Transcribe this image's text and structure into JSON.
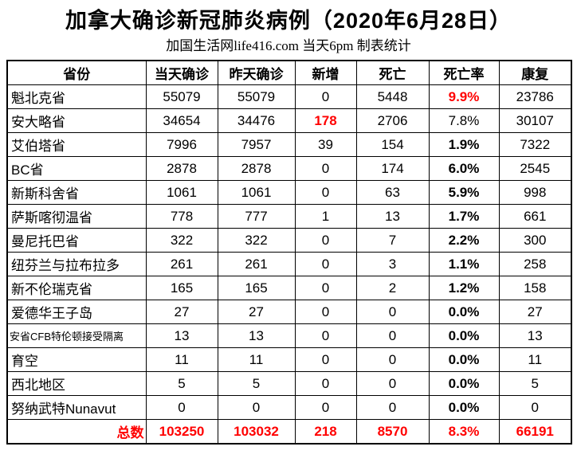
{
  "title": "加拿大确诊新冠肺炎病例（2020年6月28日）",
  "subtitle": "加国生活网life416.com 当天6pm 制表统计",
  "colors": {
    "highlight_red": "#ff0000",
    "border": "#000000",
    "background": "#ffffff",
    "text": "#000000"
  },
  "chart_data": {
    "type": "table",
    "title": "加拿大确诊新冠肺炎病例（2020年6月28日）",
    "subtitle": "加国生活网life416.com 当天6pm 制表统计",
    "columns": [
      "省份",
      "当天确诊",
      "昨天确诊",
      "新增",
      "死亡",
      "死亡率",
      "康复"
    ],
    "rows": [
      {
        "cells": [
          "魁北克省",
          "55079",
          "55079",
          "0",
          "5448",
          "9.9%",
          "23786"
        ],
        "red_cols": [
          5
        ],
        "bold_cols": [
          5
        ]
      },
      {
        "cells": [
          "安大略省",
          "34654",
          "34476",
          "178",
          "2706",
          "7.8%",
          "30107"
        ],
        "red_cols": [
          3
        ],
        "bold_cols": [
          3
        ]
      },
      {
        "cells": [
          "艾伯塔省",
          "7996",
          "7957",
          "39",
          "154",
          "1.9%",
          "7322"
        ],
        "red_cols": [],
        "bold_cols": [
          5
        ]
      },
      {
        "cells": [
          "BC省",
          "2878",
          "2878",
          "0",
          "174",
          "6.0%",
          "2545"
        ],
        "red_cols": [],
        "bold_cols": [
          5
        ]
      },
      {
        "cells": [
          "新斯科舍省",
          "1061",
          "1061",
          "0",
          "63",
          "5.9%",
          "998"
        ],
        "red_cols": [],
        "bold_cols": [
          5
        ]
      },
      {
        "cells": [
          "萨斯喀彻温省",
          "778",
          "777",
          "1",
          "13",
          "1.7%",
          "661"
        ],
        "red_cols": [],
        "bold_cols": [
          5
        ]
      },
      {
        "cells": [
          "曼尼托巴省",
          "322",
          "322",
          "0",
          "7",
          "2.2%",
          "300"
        ],
        "red_cols": [],
        "bold_cols": [
          5
        ]
      },
      {
        "cells": [
          "纽芬兰与拉布拉多",
          "261",
          "261",
          "0",
          "3",
          "1.1%",
          "258"
        ],
        "red_cols": [],
        "bold_cols": [
          5
        ]
      },
      {
        "cells": [
          "新不伦瑞克省",
          "165",
          "165",
          "0",
          "2",
          "1.2%",
          "158"
        ],
        "red_cols": [],
        "bold_cols": [
          5
        ]
      },
      {
        "cells": [
          "爱德华王子岛",
          "27",
          "27",
          "0",
          "0",
          "0.0%",
          "27"
        ],
        "red_cols": [],
        "bold_cols": [
          5
        ]
      },
      {
        "cells": [
          "安省CFB特伦顿接受隔离",
          "13",
          "13",
          "0",
          "0",
          "0.0%",
          "13"
        ],
        "red_cols": [],
        "bold_cols": [
          5
        ],
        "small_label": true
      },
      {
        "cells": [
          "育空",
          "11",
          "11",
          "0",
          "0",
          "0.0%",
          "11"
        ],
        "red_cols": [],
        "bold_cols": [
          5
        ]
      },
      {
        "cells": [
          "西北地区",
          "5",
          "5",
          "0",
          "0",
          "0.0%",
          "5"
        ],
        "red_cols": [],
        "bold_cols": [
          5
        ]
      },
      {
        "cells": [
          "努纳武特Nunavut",
          "0",
          "0",
          "0",
          "0",
          "0.0%",
          "0"
        ],
        "red_cols": [],
        "bold_cols": [
          5
        ]
      },
      {
        "cells": [
          "总数",
          "103250",
          "103032",
          "218",
          "8570",
          "8.3%",
          "66191"
        ],
        "red_cols": [
          0,
          1,
          2,
          3,
          4,
          5,
          6
        ],
        "bold_cols": [
          0,
          1,
          2,
          3,
          4,
          5,
          6
        ],
        "is_total": true
      }
    ]
  }
}
